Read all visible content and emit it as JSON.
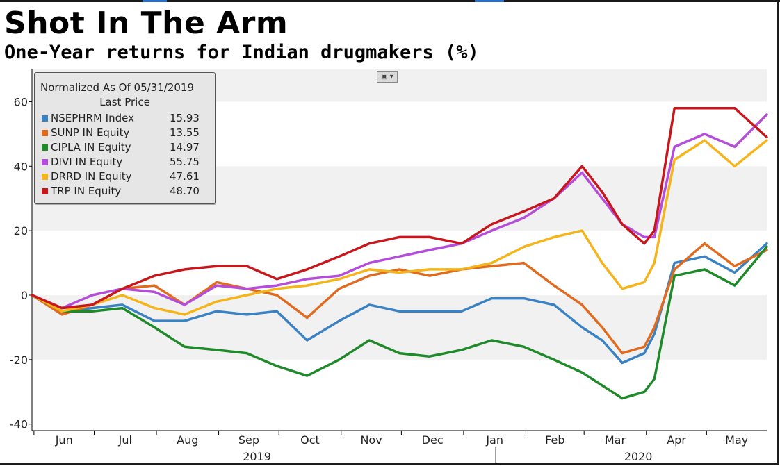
{
  "header": {
    "title": "Shot In The Arm",
    "subtitle": "One-Year returns for Indian drugmakers (%)"
  },
  "legend": {
    "line1": "Normalized As Of 05/31/2019",
    "line2": "Last Price",
    "items": [
      {
        "name": "NSEPHRM Index",
        "value": "15.93",
        "color": "#3b82c4"
      },
      {
        "name": "SUNP IN Equity",
        "value": "13.55",
        "color": "#e06b1f"
      },
      {
        "name": "CIPLA IN Equity",
        "value": "14.97",
        "color": "#1f8a2a"
      },
      {
        "name": "DIVI IN Equity",
        "value": "55.75",
        "color": "#b54ddb"
      },
      {
        "name": "DRRD IN Equity",
        "value": "47.61",
        "color": "#f4b41a"
      },
      {
        "name": "TRP IN Equity",
        "value": "48.70",
        "color": "#c8161d"
      }
    ]
  },
  "chart_data": {
    "type": "line",
    "title": "Shot In The Arm",
    "subtitle": "One-Year returns for Indian drugmakers (%)",
    "x": [
      "2019-05-31",
      "2019-06-15",
      "2019-06-30",
      "2019-07-15",
      "2019-07-31",
      "2019-08-15",
      "2019-08-31",
      "2019-09-15",
      "2019-09-30",
      "2019-10-15",
      "2019-10-31",
      "2019-11-15",
      "2019-11-30",
      "2019-12-15",
      "2019-12-31",
      "2020-01-15",
      "2020-01-31",
      "2020-02-15",
      "2020-02-29",
      "2020-03-10",
      "2020-03-20",
      "2020-03-31",
      "2020-04-05",
      "2020-04-15",
      "2020-04-30",
      "2020-05-15",
      "2020-05-31"
    ],
    "ylim": [
      -42,
      70
    ],
    "yticks": [
      -40,
      -20,
      0,
      20,
      40,
      60
    ],
    "month_labels": [
      "Jun",
      "Jul",
      "Aug",
      "Sep",
      "Oct",
      "Nov",
      "Dec",
      "Jan",
      "Feb",
      "Mar",
      "Apr",
      "May"
    ],
    "year_labels": [
      "2019",
      "2020"
    ],
    "grid": "alternating horizontal bands",
    "legend_position": "top-left",
    "series": [
      {
        "name": "NSEPHRM Index",
        "color": "#3b82c4",
        "values": [
          0,
          -5,
          -4,
          -3,
          -8,
          -8,
          -5,
          -6,
          -5,
          -14,
          -8,
          -3,
          -5,
          -5,
          -5,
          -1,
          -1,
          -3,
          -10,
          -14,
          -21,
          -18,
          -12,
          10,
          12,
          7,
          16
        ]
      },
      {
        "name": "SUNP IN Equity",
        "color": "#e06b1f",
        "values": [
          0,
          -6,
          -3,
          2,
          3,
          -3,
          4,
          2,
          0,
          -7,
          2,
          6,
          8,
          6,
          8,
          9,
          10,
          3,
          -3,
          -10,
          -18,
          -16,
          -10,
          8,
          16,
          9,
          14
        ]
      },
      {
        "name": "CIPLA IN Equity",
        "color": "#1f8a2a",
        "values": [
          0,
          -5,
          -5,
          -4,
          -10,
          -16,
          -17,
          -18,
          -22,
          -25,
          -20,
          -14,
          -18,
          -19,
          -17,
          -14,
          -16,
          -20,
          -24,
          -28,
          -32,
          -30,
          -26,
          6,
          8,
          3,
          15
        ]
      },
      {
        "name": "DIVI IN Equity",
        "color": "#b54ddb",
        "values": [
          0,
          -4,
          0,
          2,
          1,
          -3,
          3,
          2,
          3,
          5,
          6,
          10,
          12,
          14,
          16,
          20,
          24,
          30,
          38,
          30,
          22,
          18,
          18,
          46,
          50,
          46,
          56
        ]
      },
      {
        "name": "DRRD IN Equity",
        "color": "#f4b41a",
        "values": [
          0,
          -5,
          -3,
          0,
          -4,
          -6,
          -2,
          0,
          2,
          3,
          5,
          8,
          7,
          8,
          8,
          10,
          15,
          18,
          20,
          10,
          2,
          4,
          10,
          42,
          48,
          40,
          48
        ]
      },
      {
        "name": "TRP IN Equity",
        "color": "#c8161d",
        "values": [
          0,
          -4,
          -3,
          2,
          6,
          8,
          9,
          9,
          5,
          8,
          12,
          16,
          18,
          18,
          16,
          22,
          26,
          30,
          40,
          32,
          22,
          16,
          20,
          58,
          58,
          58,
          49
        ]
      }
    ]
  }
}
